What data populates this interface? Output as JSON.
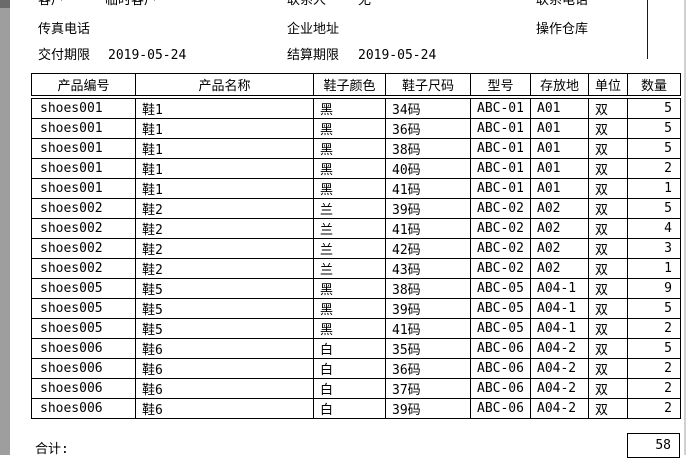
{
  "form": {
    "customer": {
      "label": "客户",
      "value": "临时客户"
    },
    "contact": {
      "label": "联系人",
      "value": "无"
    },
    "contact_phone": {
      "label": "联系电话",
      "value": ""
    },
    "fax": {
      "label": "传真电话",
      "value": ""
    },
    "address": {
      "label": "企业地址",
      "value": ""
    },
    "warehouse": {
      "label": "操作仓库",
      "value": ""
    },
    "delivery_deadline": {
      "label": "交付期限",
      "value": "2019-05-24"
    },
    "settlement_deadline": {
      "label": "结算期限",
      "value": "2019-05-24"
    }
  },
  "table": {
    "columns": [
      "产品编号",
      "产品名称",
      "鞋子颜色",
      "鞋子尺码",
      "型号",
      "存放地",
      "单位",
      "数量"
    ],
    "rows": [
      [
        "shoes001",
        "鞋1",
        "黑",
        "34码",
        "ABC-01",
        "A01",
        "双",
        "5"
      ],
      [
        "shoes001",
        "鞋1",
        "黑",
        "36码",
        "ABC-01",
        "A01",
        "双",
        "5"
      ],
      [
        "shoes001",
        "鞋1",
        "黑",
        "38码",
        "ABC-01",
        "A01",
        "双",
        "5"
      ],
      [
        "shoes001",
        "鞋1",
        "黑",
        "40码",
        "ABC-01",
        "A01",
        "双",
        "2"
      ],
      [
        "shoes001",
        "鞋1",
        "黑",
        "41码",
        "ABC-01",
        "A01",
        "双",
        "1"
      ],
      [
        "shoes002",
        "鞋2",
        "兰",
        "39码",
        "ABC-02",
        "A02",
        "双",
        "5"
      ],
      [
        "shoes002",
        "鞋2",
        "兰",
        "41码",
        "ABC-02",
        "A02",
        "双",
        "4"
      ],
      [
        "shoes002",
        "鞋2",
        "兰",
        "42码",
        "ABC-02",
        "A02",
        "双",
        "3"
      ],
      [
        "shoes002",
        "鞋2",
        "兰",
        "43码",
        "ABC-02",
        "A02",
        "双",
        "1"
      ],
      [
        "shoes005",
        "鞋5",
        "黑",
        "38码",
        "ABC-05",
        "A04-1",
        "双",
        "9"
      ],
      [
        "shoes005",
        "鞋5",
        "黑",
        "39码",
        "ABC-05",
        "A04-1",
        "双",
        "5"
      ],
      [
        "shoes005",
        "鞋5",
        "黑",
        "41码",
        "ABC-05",
        "A04-1",
        "双",
        "2"
      ],
      [
        "shoes006",
        "鞋6",
        "白",
        "35码",
        "ABC-06",
        "A04-2",
        "双",
        "5"
      ],
      [
        "shoes006",
        "鞋6",
        "白",
        "36码",
        "ABC-06",
        "A04-2",
        "双",
        "2"
      ],
      [
        "shoes006",
        "鞋6",
        "白",
        "37码",
        "ABC-06",
        "A04-2",
        "双",
        "2"
      ],
      [
        "shoes006",
        "鞋6",
        "白",
        "39码",
        "ABC-06",
        "A04-2",
        "双",
        "2"
      ]
    ]
  },
  "footer": {
    "total_label": "合计:",
    "total_value": "58"
  }
}
